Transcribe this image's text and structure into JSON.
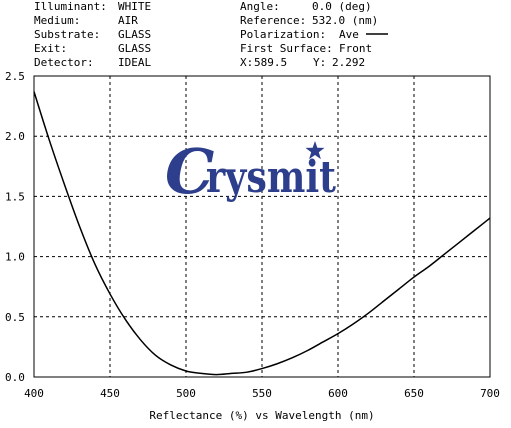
{
  "header": {
    "left": [
      {
        "label": "Illuminant:",
        "value": "WHITE"
      },
      {
        "label": "Medium:",
        "value": "AIR"
      },
      {
        "label": "Substrate:",
        "value": "GLASS"
      },
      {
        "label": "Exit:",
        "value": "GLASS"
      },
      {
        "label": "Detector:",
        "value": "IDEAL"
      }
    ],
    "right": [
      {
        "label": "Angle:",
        "value": "0.0 (deg)"
      },
      {
        "label": "Reference:",
        "value": "532.0 (nm)"
      },
      {
        "label": "Polarization:",
        "value": "Ave"
      },
      {
        "label": "First Surface:",
        "value": "Front"
      },
      {
        "label": "X:",
        "value": "589.5"
      }
    ],
    "cursor_y_label": "Y:",
    "cursor_y_value": "2.292"
  },
  "watermark": {
    "text": "Crysmit",
    "color": "#2c3e8c"
  },
  "chart_data": {
    "type": "line",
    "xlabel": "Reflectance (%)  vs  Wavelength (nm)",
    "ylabel": "",
    "xlim": [
      400,
      700
    ],
    "ylim": [
      0,
      2.5
    ],
    "x_ticks": [
      400,
      450,
      500,
      550,
      600,
      650,
      700
    ],
    "y_ticks": [
      0.0,
      0.5,
      1.0,
      1.5,
      2.0,
      2.5
    ],
    "y_tick_labels": [
      "0.0",
      "0.5",
      "1.0",
      "1.5",
      "2.0",
      "2.5"
    ],
    "grid": true,
    "series": [
      {
        "name": "Ave",
        "color": "#000000",
        "x": [
          400,
          410,
          420,
          430,
          440,
          450,
          460,
          470,
          480,
          490,
          500,
          510,
          520,
          530,
          540,
          550,
          560,
          570,
          580,
          590,
          600,
          610,
          620,
          630,
          640,
          650,
          660,
          670,
          680,
          690,
          700
        ],
        "y": [
          2.37,
          1.97,
          1.6,
          1.25,
          0.94,
          0.69,
          0.48,
          0.31,
          0.18,
          0.1,
          0.05,
          0.03,
          0.02,
          0.03,
          0.04,
          0.07,
          0.11,
          0.16,
          0.22,
          0.29,
          0.36,
          0.44,
          0.53,
          0.63,
          0.73,
          0.83,
          0.92,
          1.02,
          1.12,
          1.22,
          1.32
        ]
      }
    ]
  }
}
